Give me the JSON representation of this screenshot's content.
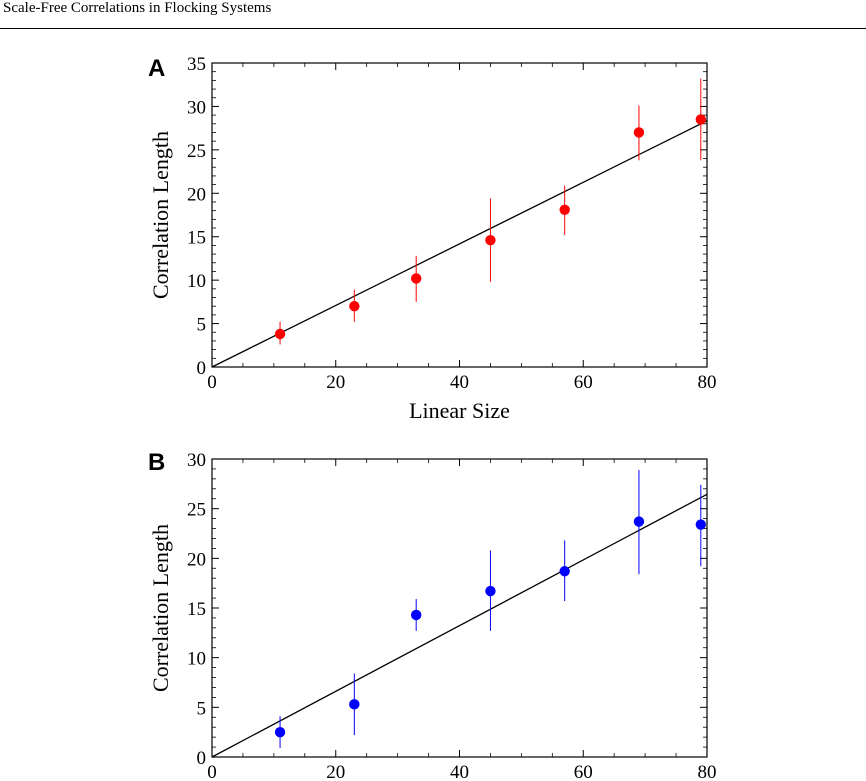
{
  "header": {
    "title": "Scale-Free Correlations in Flocking Systems"
  },
  "chart_data": [
    {
      "type": "scatter",
      "panel_label": "A",
      "xlabel": "Linear Size",
      "ylabel": "Correlation Length",
      "xlim": [
        0,
        80
      ],
      "ylim": [
        0,
        35
      ],
      "xticks": [
        0,
        20,
        40,
        60,
        80
      ],
      "yticks": [
        0,
        5,
        10,
        15,
        20,
        25,
        30,
        35
      ],
      "color": "#ff0000",
      "x": [
        11,
        23,
        33,
        45,
        57,
        69,
        79
      ],
      "y": [
        3.8,
        7.0,
        10.2,
        14.6,
        18.1,
        27.0,
        28.5
      ],
      "err_low": [
        2.6,
        5.2,
        7.5,
        9.8,
        15.2,
        23.8,
        23.8
      ],
      "err_high": [
        5.2,
        8.9,
        12.8,
        19.4,
        20.9,
        30.1,
        33.2
      ],
      "fit_line": {
        "x": [
          0,
          80
        ],
        "y": [
          0,
          28.35
        ]
      },
      "grid": false
    },
    {
      "type": "scatter",
      "panel_label": "B",
      "xlabel": "",
      "ylabel": "Correlation Length",
      "xlim": [
        0,
        80
      ],
      "ylim": [
        0,
        30
      ],
      "xticks": [
        0,
        20,
        40,
        60,
        80
      ],
      "yticks": [
        0,
        5,
        10,
        15,
        20,
        25,
        30
      ],
      "color": "#0000ff",
      "x": [
        11,
        23,
        33,
        45,
        57,
        69,
        79
      ],
      "y": [
        2.5,
        5.3,
        14.3,
        16.7,
        18.7,
        23.7,
        23.4
      ],
      "err_low": [
        0.9,
        2.2,
        12.7,
        12.7,
        15.7,
        18.4,
        19.2
      ],
      "err_high": [
        4.1,
        8.4,
        15.9,
        20.8,
        21.8,
        28.9,
        27.4
      ],
      "fit_line": {
        "x": [
          0,
          80
        ],
        "y": [
          0,
          26.45
        ]
      },
      "grid": false
    }
  ]
}
